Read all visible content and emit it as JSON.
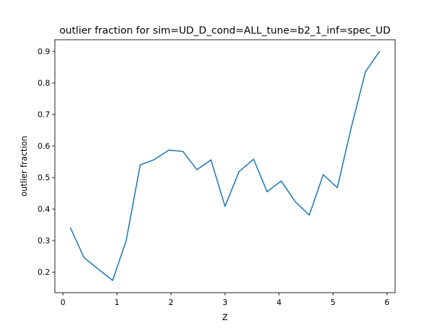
{
  "chart_data": {
    "type": "line",
    "title": "outlier fraction for sim=UD_D_cond=ALL_tune=b2_1_inf=spec_UD",
    "xlabel": "Z",
    "ylabel": "outlier fraction",
    "xlim": [
      -0.15,
      6.15
    ],
    "ylim": [
      0.135,
      0.937
    ],
    "xticks": [
      0,
      1,
      2,
      3,
      4,
      5,
      6
    ],
    "yticks": [
      0.2,
      0.3,
      0.4,
      0.5,
      0.6,
      0.7,
      0.8,
      0.9
    ],
    "grid": false,
    "series": [
      {
        "color": "#1f77b4",
        "x": [
          0.14,
          0.39,
          0.65,
          0.92,
          1.17,
          1.43,
          1.69,
          1.96,
          2.22,
          2.48,
          2.74,
          3.0,
          3.26,
          3.53,
          3.78,
          4.04,
          4.3,
          4.56,
          4.82,
          5.08,
          5.34,
          5.6,
          5.86
        ],
        "y": [
          0.34,
          0.246,
          0.21,
          0.174,
          0.3,
          0.54,
          0.557,
          0.587,
          0.583,
          0.525,
          0.556,
          0.409,
          0.519,
          0.558,
          0.455,
          0.489,
          0.424,
          0.381,
          0.509,
          0.468,
          0.66,
          0.835,
          0.9
        ]
      }
    ]
  }
}
